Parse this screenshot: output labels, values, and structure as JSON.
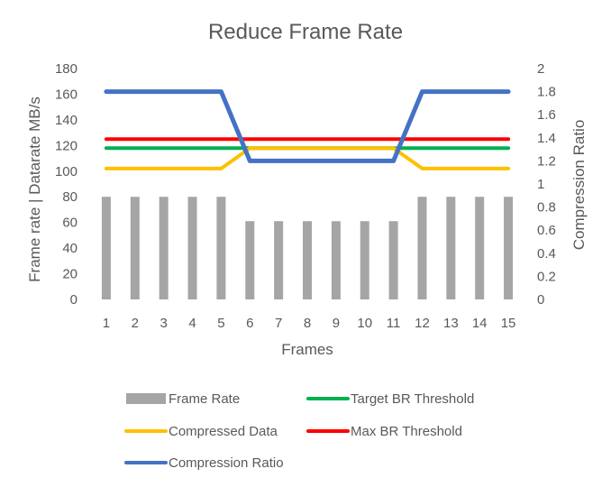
{
  "chart_data": {
    "type": "bar",
    "title": "Reduce Frame Rate",
    "xlabel": "Frames",
    "ylabel": "Frame rate    |    Datarate MB/s",
    "y2label": "Compression Ratio",
    "categories": [
      "1",
      "2",
      "3",
      "4",
      "5",
      "6",
      "7",
      "8",
      "9",
      "10",
      "11",
      "12",
      "13",
      "14",
      "15"
    ],
    "ylim": [
      0,
      180
    ],
    "y_ticks": [
      "0",
      "20",
      "40",
      "60",
      "80",
      "100",
      "120",
      "140",
      "160",
      "180"
    ],
    "y2lim": [
      0,
      2
    ],
    "y2_ticks": [
      "0",
      "0.2",
      "0.4",
      "0.6",
      "0.8",
      "1",
      "1.2",
      "1.4",
      "1.6",
      "1.8",
      "2"
    ],
    "grid": false,
    "legend_position": "bottom",
    "series": [
      {
        "name": "Frame Rate",
        "type": "bar",
        "axis": "left",
        "color": "#a5a5a5",
        "values": [
          80,
          80,
          80,
          80,
          80,
          61,
          61,
          61,
          61,
          61,
          61,
          80,
          80,
          80,
          80
        ]
      },
      {
        "name": "Compressed Data",
        "type": "line",
        "axis": "left",
        "color": "#ffc000",
        "values": [
          102,
          102,
          102,
          102,
          102,
          118,
          118,
          118,
          118,
          118,
          118,
          102,
          102,
          102,
          102
        ]
      },
      {
        "name": "Compression Ratio",
        "type": "line",
        "axis": "right",
        "color": "#4472c4",
        "values": [
          1.8,
          1.8,
          1.8,
          1.8,
          1.8,
          1.2,
          1.2,
          1.2,
          1.2,
          1.2,
          1.2,
          1.8,
          1.8,
          1.8,
          1.8
        ]
      },
      {
        "name": "Target BR Threshold",
        "type": "line",
        "axis": "left",
        "color": "#00b050",
        "values": [
          118,
          118,
          118,
          118,
          118,
          118,
          118,
          118,
          118,
          118,
          118,
          118,
          118,
          118,
          118
        ]
      },
      {
        "name": "Max BR Threshold",
        "type": "line",
        "axis": "left",
        "color": "#ff0000",
        "values": [
          125,
          125,
          125,
          125,
          125,
          125,
          125,
          125,
          125,
          125,
          125,
          125,
          125,
          125,
          125
        ]
      }
    ]
  }
}
